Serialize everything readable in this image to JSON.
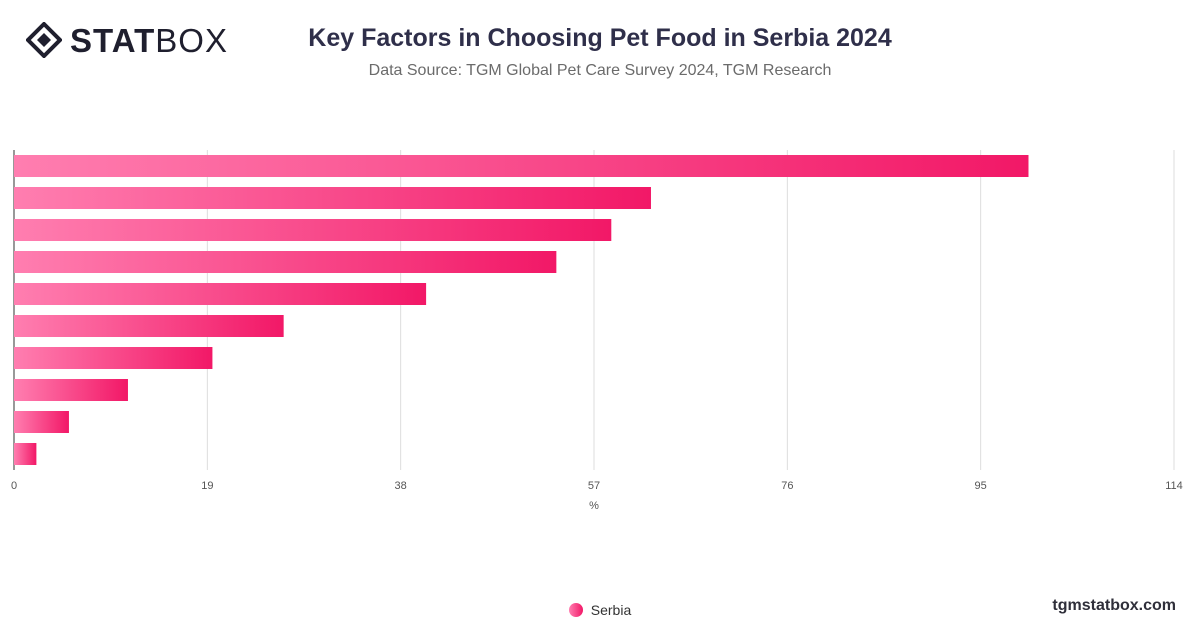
{
  "header": {
    "logo_bold": "STAT",
    "logo_light": "BOX",
    "title": "Key Factors in Choosing Pet Food in Serbia 2024",
    "subtitle": "Data Source: TGM Global Pet Care Survey 2024, TGM Research"
  },
  "footer": {
    "site": "tgmstatbox.com"
  },
  "legend": {
    "label": "Serbia"
  },
  "colors": {
    "bar_start": "#ff7eb0",
    "bar_end": "#f21867",
    "grid": "#dddddd",
    "axis": "#555555"
  },
  "chart_data": {
    "type": "bar",
    "orientation": "horizontal",
    "title": "Key Factors in Choosing Pet Food in Serbia 2024",
    "xlabel": "%",
    "ylabel": "",
    "xlim": [
      0,
      114
    ],
    "ticks": [
      0,
      19,
      38,
      57,
      76,
      95,
      114
    ],
    "grid": true,
    "legend_position": "bottom",
    "series": [
      {
        "name": "Serbia",
        "values": [
          99.7,
          62.6,
          58.7,
          53.3,
          40.5,
          26.5,
          19.5,
          11.2,
          5.4,
          2.2
        ]
      }
    ]
  }
}
